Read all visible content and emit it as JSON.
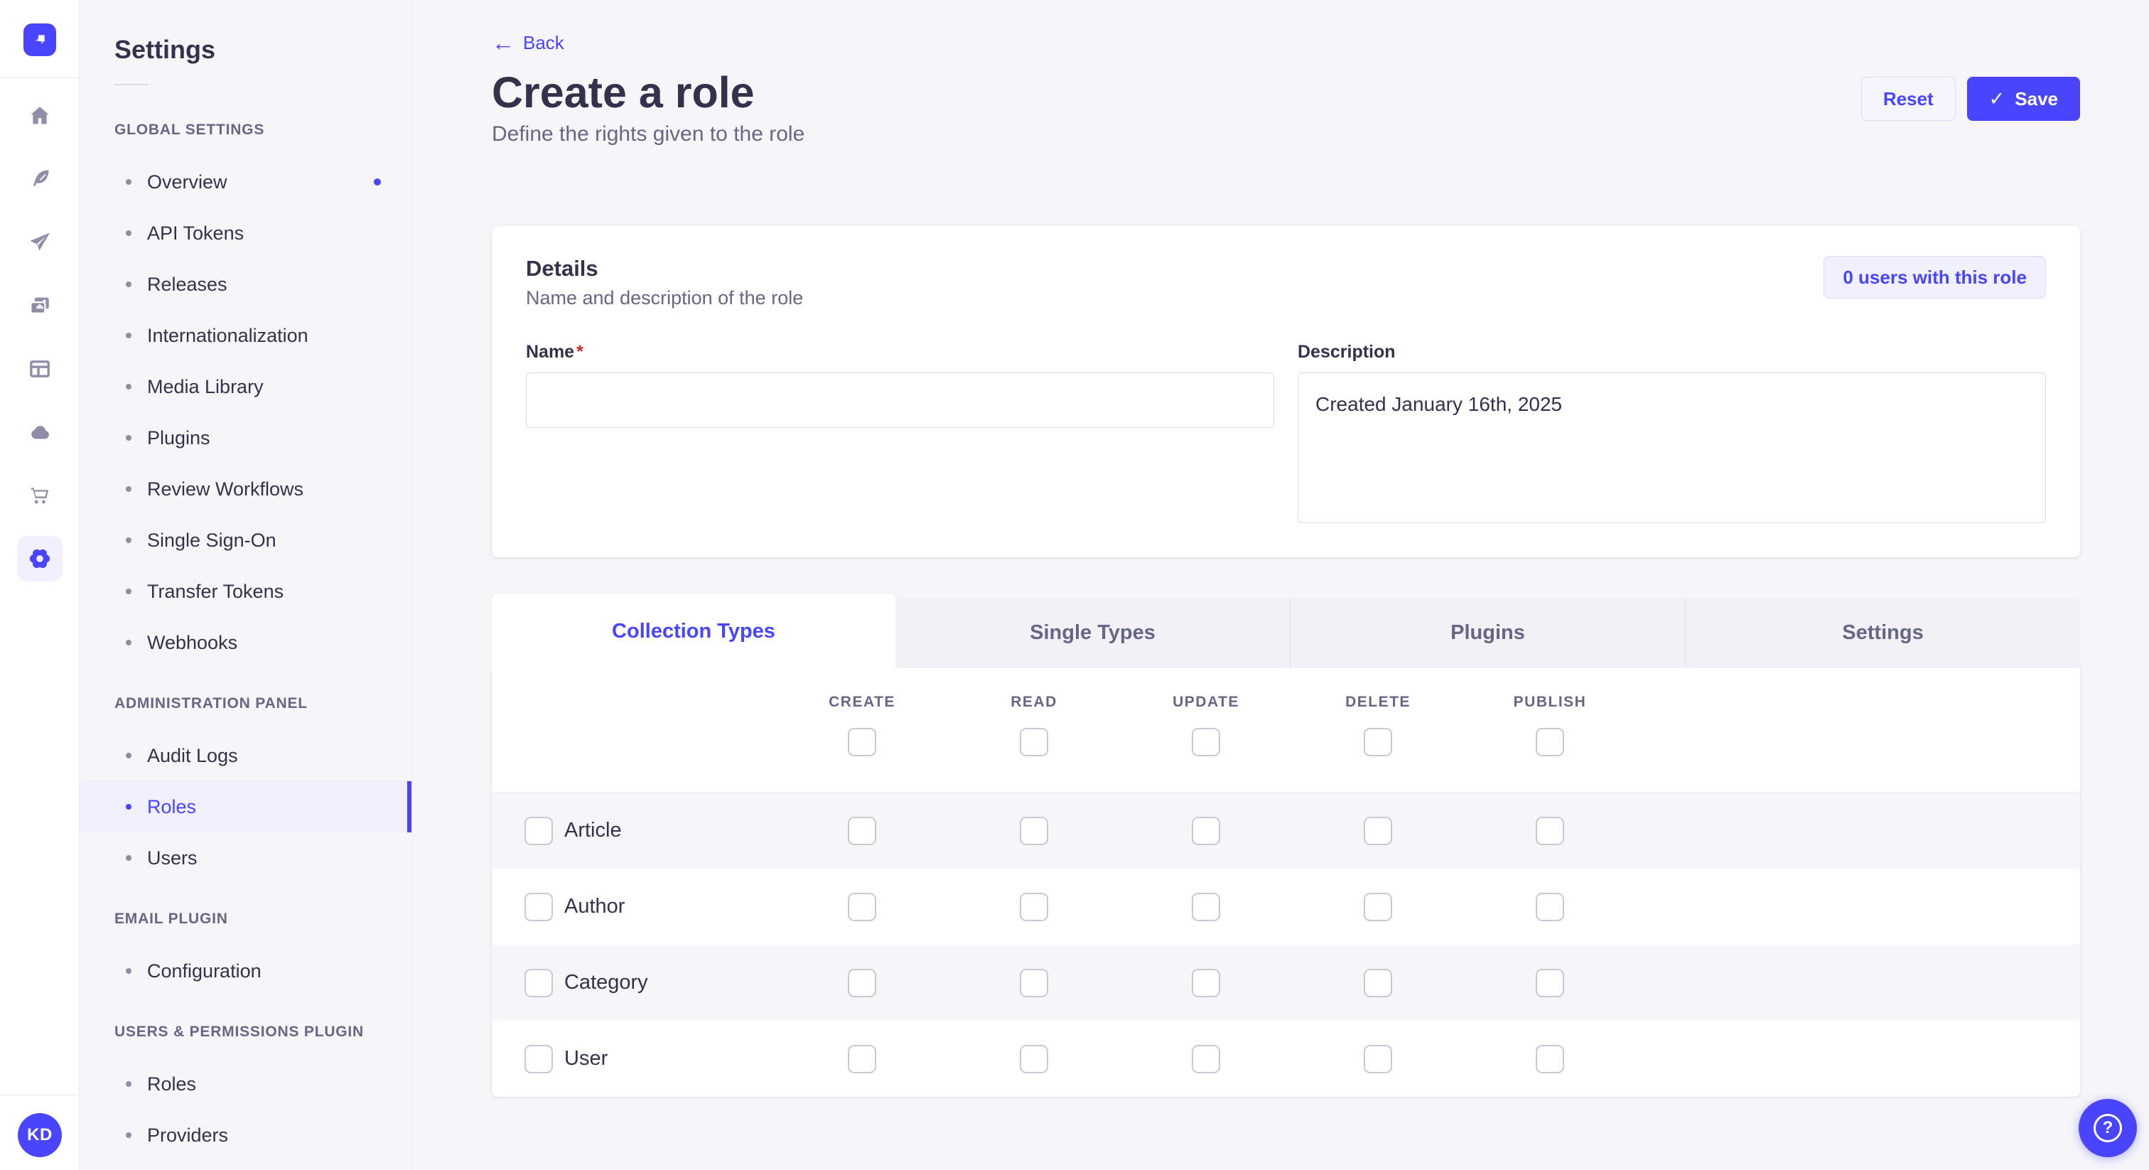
{
  "colors": {
    "primary": "#4945ff",
    "primary_bg": "#f0f0ff",
    "primary_border": "#d9d8ff",
    "text_dark": "#32324d",
    "text_muted": "#666687",
    "page_bg": "#f6f6f9",
    "border": "#eaeaef",
    "required": "#d02b20"
  },
  "nav_strip": {
    "logo_icon": "strapi-logo",
    "icons": [
      "home",
      "feather",
      "paper-plane",
      "media-library",
      "layout",
      "cloud",
      "cart",
      "settings-gear"
    ],
    "active_icon": "settings-gear",
    "avatar_initials": "KD"
  },
  "sidebar": {
    "title": "Settings",
    "sections": [
      {
        "header": "GLOBAL SETTINGS",
        "items": [
          {
            "label": "Overview",
            "notification_dot": true
          },
          {
            "label": "API Tokens"
          },
          {
            "label": "Releases"
          },
          {
            "label": "Internationalization"
          },
          {
            "label": "Media Library"
          },
          {
            "label": "Plugins"
          },
          {
            "label": "Review Workflows"
          },
          {
            "label": "Single Sign-On"
          },
          {
            "label": "Transfer Tokens"
          },
          {
            "label": "Webhooks"
          }
        ]
      },
      {
        "header": "ADMINISTRATION PANEL",
        "items": [
          {
            "label": "Audit Logs"
          },
          {
            "label": "Roles",
            "selected": true
          },
          {
            "label": "Users"
          }
        ]
      },
      {
        "header": "EMAIL PLUGIN",
        "items": [
          {
            "label": "Configuration"
          }
        ]
      },
      {
        "header": "USERS & PERMISSIONS PLUGIN",
        "items": [
          {
            "label": "Roles"
          },
          {
            "label": "Providers"
          }
        ]
      }
    ]
  },
  "page_header": {
    "back_label": "Back",
    "title": "Create a role",
    "subtitle": "Define the rights given to the role",
    "reset_label": "Reset",
    "save_label": "Save",
    "save_check": "✓"
  },
  "details_card": {
    "title": "Details",
    "subtitle": "Name and description of the role",
    "users_badge": "0 users with this role",
    "name_label": "Name",
    "required_mark": "*",
    "name_value": "",
    "description_label": "Description",
    "description_value": "Created January 16th, 2025"
  },
  "permissions_card": {
    "tabs": [
      {
        "label": "Collection Types",
        "active": true
      },
      {
        "label": "Single Types"
      },
      {
        "label": "Plugins"
      },
      {
        "label": "Settings"
      }
    ],
    "columns": [
      "CREATE",
      "READ",
      "UPDATE",
      "DELETE",
      "PUBLISH"
    ],
    "rows": [
      {
        "label": "Article"
      },
      {
        "label": "Author"
      },
      {
        "label": "Category"
      },
      {
        "label": "User"
      }
    ],
    "all_checkboxes_checked": false
  },
  "floating_help": {
    "icon_label": "?"
  }
}
